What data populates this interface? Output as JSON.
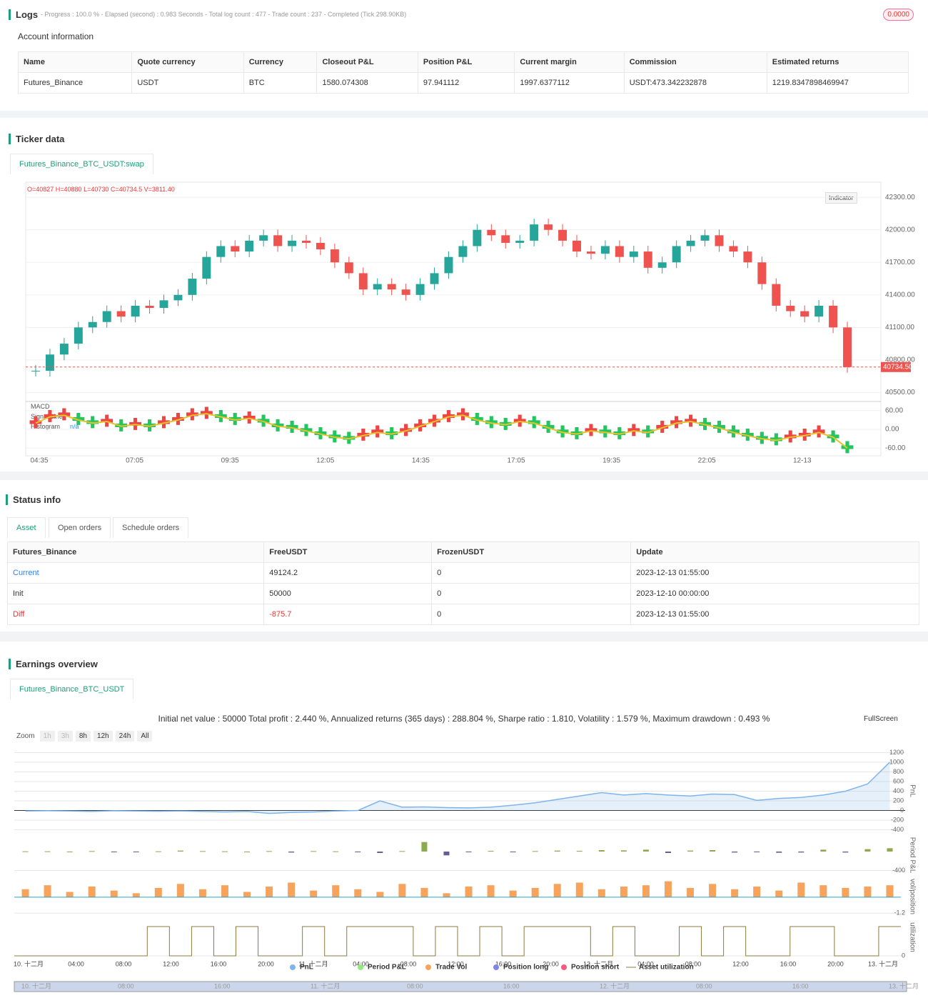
{
  "logs": {
    "title": "Logs",
    "summary": "- Progress : 100.0 % - Elapsed (second) : 0.983 Seconds - Total log count : 477 - Trade count : 237 - Completed (Tick 298.90KB)",
    "badge": "0.0000",
    "account_title": "Account information",
    "table": {
      "headers": [
        "Name",
        "Quote currency",
        "Currency",
        "Closeout P&L",
        "Position P&L",
        "Current margin",
        "Commission",
        "Estimated returns"
      ],
      "rows": [
        [
          "Futures_Binance",
          "USDT",
          "BTC",
          "1580.074308",
          "97.941112",
          "1997.6377112",
          "USDT:473.342232878",
          "1219.8347898469947"
        ]
      ]
    }
  },
  "ticker": {
    "title": "Ticker data",
    "tab": "Futures_Binance_BTC_USDT:swap",
    "ohlc": "O=40827 H=40880 L=40730 C=40734.5 V=3811.40",
    "indicator_button": "Indicator",
    "macd_legend": [
      "MACD",
      "Signal Line",
      "Histogram"
    ],
    "na": "n/a",
    "chart": {
      "type": "candlestick",
      "x_labels": [
        "04:35",
        "07:05",
        "09:35",
        "12:05",
        "14:35",
        "17:05",
        "19:35",
        "22:05",
        "12-13"
      ],
      "closes": [
        40700,
        40850,
        40950,
        41100,
        41150,
        41250,
        41200,
        41300,
        41280,
        41350,
        41400,
        41550,
        41750,
        41850,
        41800,
        41900,
        41950,
        41850,
        41900,
        41880,
        41820,
        41700,
        41600,
        41450,
        41500,
        41450,
        41400,
        41500,
        41600,
        41750,
        41850,
        42000,
        41950,
        41880,
        41900,
        42050,
        42000,
        41900,
        41800,
        41780,
        41850,
        41750,
        41800,
        41650,
        41700,
        41850,
        41900,
        41950,
        41850,
        41800,
        41700,
        41500,
        41300,
        41250,
        41200,
        41300,
        41100,
        40734.5
      ],
      "ylim": [
        40430,
        42420
      ],
      "yticks": [
        {
          "value": 40500,
          "label": "40500.00"
        },
        {
          "value": 40800,
          "label": "40800.00"
        },
        {
          "value": 41100,
          "label": "41100.00"
        },
        {
          "value": 41400,
          "label": "41400.00"
        },
        {
          "value": 41700,
          "label": "41700.00"
        },
        {
          "value": 42000,
          "label": "42000.00"
        },
        {
          "value": 42300,
          "label": "42300.00"
        }
      ],
      "last_price": {
        "value": 40734.5,
        "label": "40734.50"
      },
      "up_color": "#26a69a",
      "down_color": "#ef5350",
      "macd": [
        20,
        40,
        45,
        30,
        20,
        25,
        10,
        15,
        10,
        20,
        30,
        45,
        50,
        40,
        30,
        35,
        25,
        10,
        5,
        -5,
        -15,
        -25,
        -30,
        -20,
        -10,
        -15,
        -5,
        10,
        25,
        40,
        45,
        30,
        20,
        15,
        25,
        20,
        5,
        -10,
        -15,
        -5,
        -10,
        -15,
        -5,
        -10,
        5,
        20,
        25,
        15,
        5,
        -10,
        -20,
        -30,
        -35,
        -25,
        -20,
        -10,
        -25,
        -60
      ],
      "macd_ylim": [
        -80,
        80
      ],
      "macd_yticks": [
        {
          "value": 60,
          "label": "60.00"
        },
        {
          "value": 0,
          "label": "0.00"
        },
        {
          "value": -60,
          "label": "-60.00"
        }
      ]
    }
  },
  "status": {
    "title": "Status info",
    "tabs": [
      "Asset",
      "Open orders",
      "Schedule orders"
    ],
    "table": {
      "headers": [
        "Futures_Binance",
        "FreeUSDT",
        "FrozenUSDT",
        "Update"
      ],
      "rows": [
        [
          "Current",
          "49124.2",
          "0",
          "2023-12-13 01:55:00"
        ],
        [
          "Init",
          "50000",
          "0",
          "2023-12-10 00:00:00"
        ],
        [
          "Diff",
          "-875.7",
          "0",
          "2023-12-13 01:55:00"
        ]
      ]
    }
  },
  "earnings": {
    "title": "Earnings overview",
    "tab": "Futures_Binance_BTC_USDT",
    "summary": "Initial net value : 50000 Total profit : 2.440 %, Annualized returns (365 days) : 288.804 %, Sharpe ratio : 1.810, Volatility : 1.579 %, Maximum drawdown : 0.493 %",
    "fullscreen": "FullScreen",
    "zoom": [
      "Zoom",
      "1h",
      "3h",
      "8h",
      "12h",
      "24h",
      "All"
    ],
    "chart": {
      "type": "line",
      "x_labels": [
        "10. 十二月",
        "04:00",
        "08:00",
        "12:00",
        "16:00",
        "20:00",
        "11. 十二月",
        "04:00",
        "08:00",
        "12:00",
        "16:00",
        "20:00",
        "12. 十二月",
        "04:00",
        "08:00",
        "12:00",
        "16:00",
        "20:00",
        "13. 十二月"
      ],
      "navigator_labels": [
        "10. 十二月",
        "08:00",
        "16:00",
        "11. 十二月",
        "08:00",
        "16:00",
        "12. 十二月",
        "08:00",
        "16:00",
        "13. 十二月"
      ],
      "series": [
        {
          "name": "PnL",
          "color": "#7cb5ec",
          "values": [
            -10,
            -5,
            -10,
            -20,
            -5,
            -10,
            -15,
            -10,
            -20,
            -30,
            -20,
            -60,
            -40,
            -30,
            -10,
            0,
            200,
            70,
            75,
            60,
            55,
            70,
            110,
            160,
            230,
            300,
            370,
            320,
            350,
            320,
            300,
            340,
            330,
            210,
            250,
            270,
            320,
            400,
            550,
            1000
          ]
        },
        {
          "name": "Period P&L",
          "color": "#90ed7d",
          "values": [
            5,
            5,
            0,
            10,
            -15,
            -10,
            5,
            20,
            10,
            5,
            0,
            10,
            -20,
            10,
            5,
            -10,
            -30,
            10,
            200,
            -80,
            -10,
            15,
            -5,
            10,
            20,
            15,
            30,
            25,
            40,
            -30,
            20,
            30,
            -20,
            -15,
            -25,
            -20,
            40,
            -20,
            50,
            70
          ]
        },
        {
          "name": "Trade Vol",
          "color": "#f7a35c",
          "values": [
            0.6,
            0.9,
            0.4,
            0.8,
            0.5,
            0.3,
            0.7,
            1.0,
            0.6,
            0.9,
            0.4,
            0.8,
            1.1,
            0.5,
            0.9,
            0.6,
            0.4,
            1.0,
            0.7,
            0.3,
            0.8,
            0.9,
            0.5,
            0.7,
            1.0,
            1.1,
            0.6,
            0.8,
            0.9,
            1.2,
            0.7,
            1.0,
            0.6,
            0.8,
            0.5,
            1.1,
            0.9,
            0.7,
            0.8,
            0.9
          ]
        },
        {
          "name": "Position long",
          "color": "#8085e9"
        },
        {
          "name": "Position short",
          "color": "#f15c80"
        },
        {
          "name": "Asset utilization",
          "color": "#8d7a3f",
          "values": [
            0,
            0,
            0,
            0,
            0,
            0,
            1,
            0,
            1,
            0,
            1,
            0,
            0,
            1,
            0,
            1,
            1,
            1,
            0,
            1,
            0,
            1,
            0,
            1,
            1,
            1,
            0,
            1,
            0,
            0,
            1,
            0,
            1,
            0,
            0,
            1,
            1,
            0,
            0,
            1
          ]
        }
      ],
      "axis_titles": [
        "PnL",
        "Period P&L",
        "vol/position",
        "utilization"
      ],
      "ylim": [
        -450,
        1250
      ],
      "yticks": [
        1200,
        1000,
        800,
        600,
        400,
        200,
        0,
        -200,
        -400
      ],
      "pl_ylim": [
        -450,
        300
      ],
      "pl_yticks": [
        -400
      ],
      "vol_ylim": [
        -1.4,
        1.5
      ],
      "vol_yticks": [
        -1.2
      ],
      "util_ylim": [
        0,
        1.05
      ],
      "util_yticks": [
        0
      ]
    }
  }
}
